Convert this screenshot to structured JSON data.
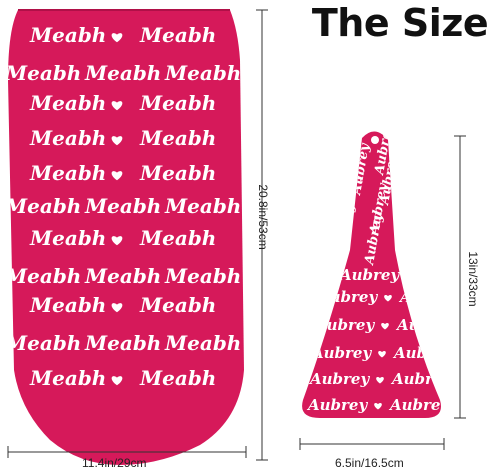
{
  "title": "The Size",
  "sleep_sack": {
    "name_text": "Meabh",
    "heart_icon": "heart-icon",
    "fabric_color": "#d6195a",
    "height_label": "20.8in/53cm",
    "width_label": "11.4in/29cm"
  },
  "hat": {
    "name_text": "Aubrey",
    "heart_icon": "heart-icon",
    "fabric_color": "#d6195a",
    "height_label": "13in/33cm",
    "width_label": "6.5in/16.5cm"
  }
}
